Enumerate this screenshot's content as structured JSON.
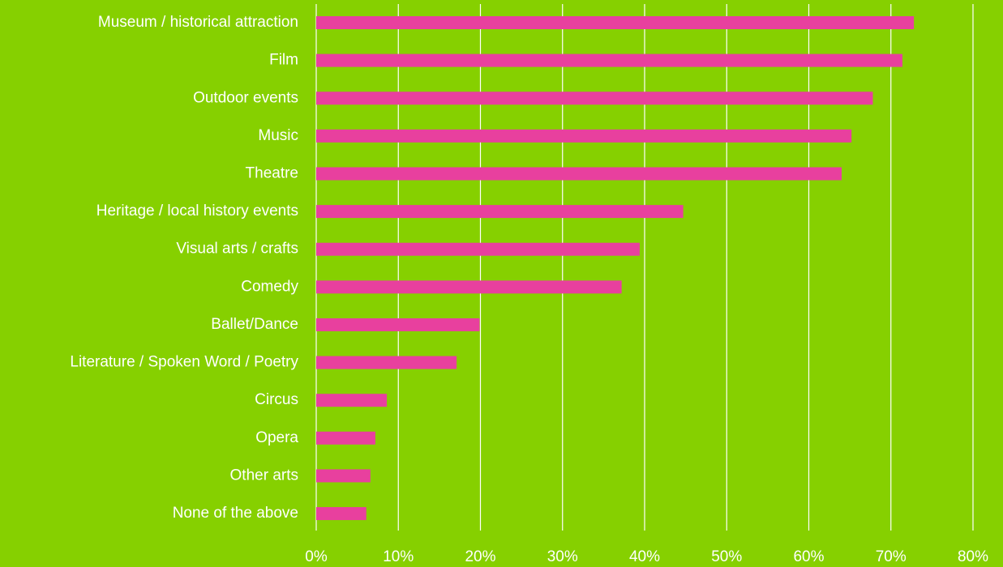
{
  "chart_data": {
    "type": "bar",
    "orientation": "horizontal",
    "categories": [
      "Museum / historical attraction",
      "Film",
      "Outdoor events",
      "Music",
      "Theatre",
      "Heritage / local history events",
      "Visual arts / crafts",
      "Comedy",
      "Ballet/Dance",
      "Literature / Spoken Word / Poetry",
      "Circus",
      "Opera",
      "Other arts",
      "None of the above"
    ],
    "values": [
      72.8,
      71.4,
      67.8,
      65.2,
      64.0,
      44.7,
      39.4,
      37.2,
      19.9,
      17.1,
      8.6,
      7.2,
      6.6,
      6.1
    ],
    "color": "#e8409e",
    "background": "#86d000",
    "xlim": [
      0,
      80
    ],
    "xticks": [
      {
        "value": 0,
        "label": "0%"
      },
      {
        "value": 10,
        "label": "10%"
      },
      {
        "value": 20,
        "label": "20%"
      },
      {
        "value": 30,
        "label": "30%"
      },
      {
        "value": 40,
        "label": "40%"
      },
      {
        "value": 50,
        "label": "50%"
      },
      {
        "value": 60,
        "label": "60%"
      },
      {
        "value": 70,
        "label": "70%"
      },
      {
        "value": 80,
        "label": "80%"
      }
    ],
    "grid": true
  }
}
